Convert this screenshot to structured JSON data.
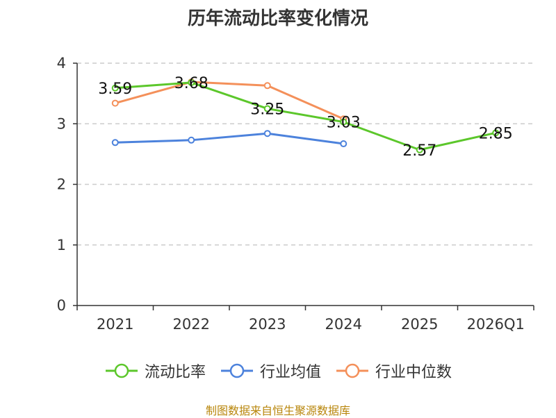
{
  "chart_data": {
    "type": "line",
    "title": "历年流动比率变化情况",
    "categories": [
      "2021",
      "2022",
      "2023",
      "2024",
      "2025",
      "2026Q1"
    ],
    "ylim": [
      0,
      4
    ],
    "yticks": [
      "0",
      "1",
      "2",
      "3",
      "4"
    ],
    "grid": "horizontal dashed",
    "series": [
      {
        "name": "流动比率",
        "color": "#5cc72b",
        "values": [
          3.59,
          3.68,
          3.25,
          3.03,
          2.57,
          2.85
        ],
        "labels": [
          "3.59",
          "3.68",
          "3.25",
          "3.03",
          "2.57",
          "2.85"
        ]
      },
      {
        "name": "行业均值",
        "color": "#4c82dc",
        "values": [
          2.69,
          2.73,
          2.84,
          2.67,
          null,
          null
        ]
      },
      {
        "name": "行业中位数",
        "color": "#f4905a",
        "values": [
          3.34,
          3.69,
          3.63,
          3.08,
          null,
          null
        ]
      }
    ],
    "legend_position": "bottom"
  },
  "source": "制图数据来自恒生聚源数据库"
}
